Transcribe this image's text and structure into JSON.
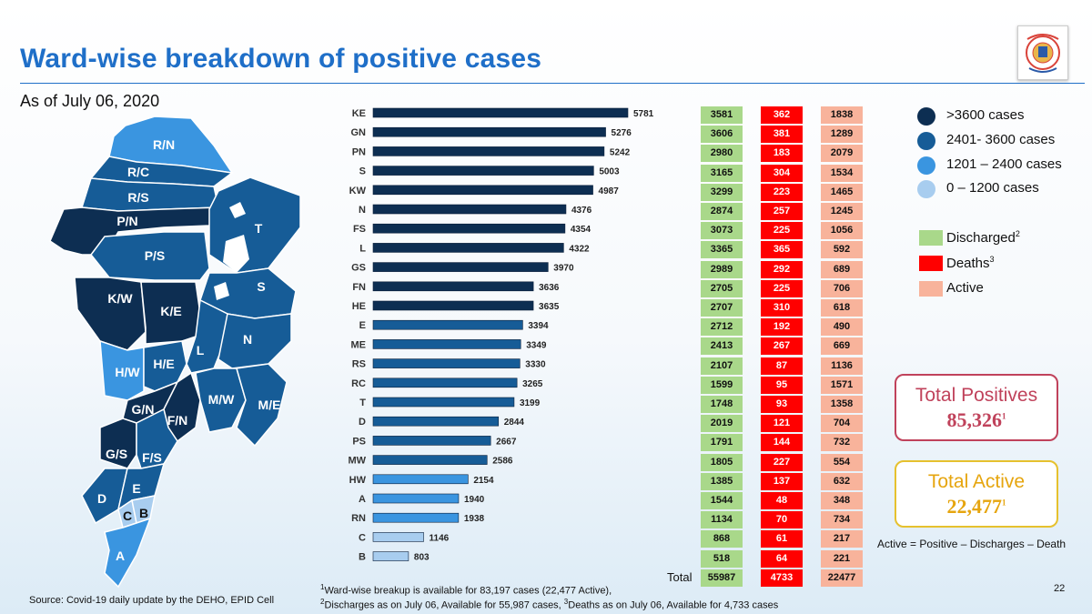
{
  "header": {
    "title": "Ward-wise breakdown of positive cases",
    "subtitle": "As of July 06, 2020",
    "page_number": "22"
  },
  "chart_data": {
    "type": "bar",
    "orientation": "horizontal",
    "categories": [
      "KE",
      "GN",
      "PN",
      "S",
      "KW",
      "N",
      "FS",
      "L",
      "GS",
      "FN",
      "HE",
      "E",
      "ME",
      "RS",
      "RC",
      "T",
      "D",
      "PS",
      "MW",
      "HW",
      "A",
      "RN",
      "C",
      "B"
    ],
    "values": [
      5781,
      5276,
      5242,
      5003,
      4987,
      4376,
      4354,
      4322,
      3970,
      3636,
      3635,
      3394,
      3349,
      3330,
      3265,
      3199,
      2844,
      2667,
      2586,
      2154,
      1940,
      1938,
      1146,
      803
    ],
    "series_name": "Positive cases",
    "color_bins": [
      {
        "label": ">3600 cases",
        "color": "#0d2e52"
      },
      {
        "label": "2401- 3600 cases",
        "color": "#165c97"
      },
      {
        "label": "1201 – 2400 cases",
        "color": "#3a95e0"
      },
      {
        "label": "0 – 1200 cases",
        "color": "#a8cdef"
      }
    ],
    "table": {
      "discharged": [
        3581,
        3606,
        2980,
        3165,
        3299,
        2874,
        3073,
        3365,
        2989,
        2705,
        2707,
        2712,
        2413,
        2107,
        1599,
        1748,
        2019,
        1791,
        1805,
        1385,
        1544,
        1134,
        868,
        518
      ],
      "deaths": [
        362,
        381,
        183,
        304,
        223,
        257,
        225,
        365,
        292,
        225,
        310,
        192,
        267,
        87,
        95,
        93,
        121,
        144,
        227,
        137,
        48,
        70,
        61,
        64
      ],
      "active": [
        1838,
        1289,
        2079,
        1534,
        1465,
        1245,
        1056,
        592,
        689,
        706,
        618,
        490,
        669,
        1136,
        1571,
        1358,
        704,
        732,
        554,
        632,
        348,
        734,
        217,
        221
      ]
    },
    "totals": {
      "label": "Total",
      "discharged": "55987",
      "deaths": "4733",
      "active": "22477"
    }
  },
  "map": {
    "labels": [
      "R/N",
      "R/C",
      "R/S",
      "P/N",
      "P/S",
      "T",
      "K/W",
      "K/E",
      "S",
      "H/W",
      "H/E",
      "L",
      "N",
      "G/N",
      "F/N",
      "M/W",
      "M/E",
      "G/S",
      "F/S",
      "D",
      "E",
      "C",
      "B",
      "A"
    ]
  },
  "legend": {
    "bins": [
      ">3600 cases",
      "2401- 3600 cases",
      "1201 – 2400 cases",
      "0 – 1200 cases"
    ],
    "discharged": "Discharged",
    "discharged_sup": "2",
    "deaths": "Deaths",
    "deaths_sup": "3",
    "active": "Active",
    "colors": {
      "discharged": "#a9d88a",
      "deaths": "#ff0000",
      "active": "#f8b39b"
    }
  },
  "summary": {
    "total_positives_label": "Total Positives",
    "total_positives_value": "85,326",
    "total_positives_sup": "1",
    "total_active_label": "Total Active",
    "total_active_value": "22,477",
    "total_active_sup": "1",
    "formula": "Active = Positive – Discharges – Death"
  },
  "footnotes": {
    "note1_sup": "1",
    "note1": "Ward-wise breakup is available for 83,197 cases (22,477 Active),",
    "note2_sup": "2",
    "note2a": "Discharges as on July 06, Available for 55,987 cases, ",
    "note3_sup": "3",
    "note2b": "Deaths as on July 06, Available for 4,733 cases",
    "source": "Source: Covid-19 daily update by the DEHO, EPID Cell"
  }
}
